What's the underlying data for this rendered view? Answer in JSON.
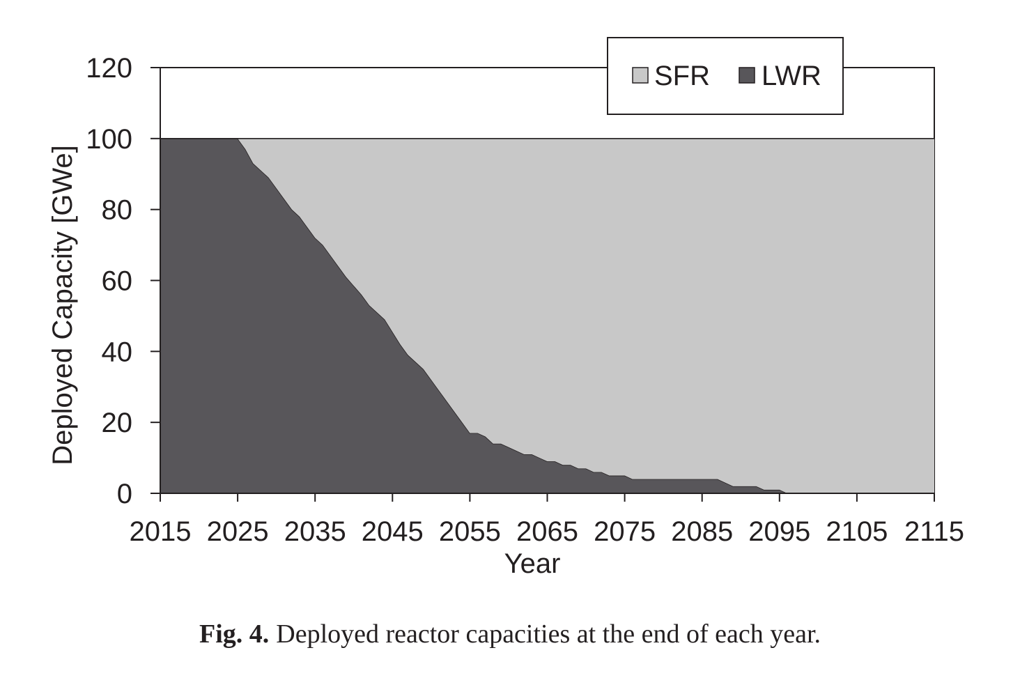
{
  "chart_data": {
    "type": "area",
    "stacked": true,
    "xlabel": "Year",
    "ylabel": "Deployed Capacity [GWe]",
    "xlim": [
      2015,
      2115
    ],
    "ylim": [
      0,
      120
    ],
    "xticks": [
      2015,
      2025,
      2035,
      2045,
      2055,
      2065,
      2075,
      2085,
      2095,
      2105,
      2115
    ],
    "yticks": [
      0,
      20,
      40,
      60,
      80,
      100,
      120
    ],
    "legend_position": "top-right",
    "colors": {
      "LWR": "#58565a",
      "SFR": "#c8c8c8"
    },
    "x": [
      2015,
      2025,
      2026,
      2027,
      2029,
      2031,
      2032,
      2033,
      2035,
      2036,
      2038,
      2039,
      2041,
      2042,
      2044,
      2046,
      2047,
      2049,
      2051,
      2052,
      2054,
      2055,
      2056,
      2057,
      2058,
      2059,
      2060,
      2061,
      2062,
      2063,
      2064,
      2065,
      2066,
      2067,
      2068,
      2069,
      2070,
      2071,
      2072,
      2073,
      2074,
      2075,
      2076,
      2087,
      2089,
      2092,
      2093,
      2095,
      2096,
      2115
    ],
    "series": [
      {
        "name": "LWR",
        "values": [
          100,
          100,
          97,
          93,
          89,
          83,
          80,
          78,
          72,
          70,
          64,
          61,
          56,
          53,
          49,
          42,
          39,
          35,
          29,
          26,
          20,
          17,
          17,
          16,
          14,
          14,
          13,
          12,
          11,
          11,
          10,
          9,
          9,
          8,
          8,
          7,
          7,
          6,
          6,
          5,
          5,
          5,
          4,
          4,
          2,
          2,
          1,
          1,
          0,
          0
        ]
      },
      {
        "name": "SFR",
        "values": [
          0,
          0,
          3,
          7,
          11,
          17,
          20,
          22,
          28,
          30,
          36,
          39,
          44,
          47,
          51,
          58,
          61,
          65,
          71,
          74,
          80,
          83,
          83,
          84,
          86,
          86,
          87,
          88,
          89,
          89,
          90,
          91,
          91,
          92,
          92,
          93,
          93,
          94,
          94,
          95,
          95,
          95,
          96,
          96,
          98,
          98,
          99,
          99,
          100,
          100
        ]
      }
    ]
  },
  "caption": {
    "label": "Fig. 4.",
    "text": "Deployed reactor capacities at the end of each year."
  }
}
